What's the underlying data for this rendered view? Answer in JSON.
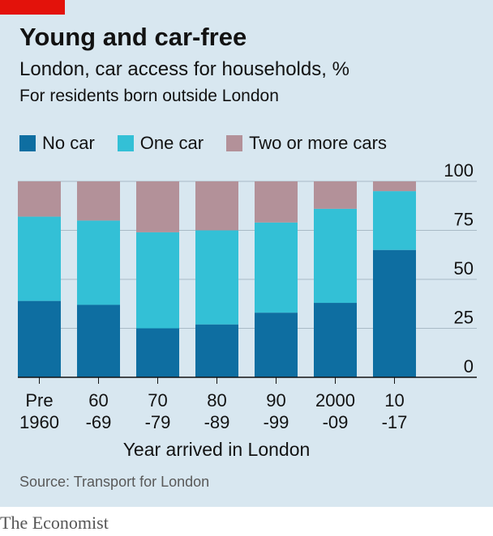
{
  "title": "Young and car-free",
  "subtitle": "London, car access for households, %",
  "subtitle2": "For residents born outside London",
  "source": "Source: Transport for London",
  "brand": "The Economist",
  "colors": {
    "no_car": "#0e6ea1",
    "one_car": "#33c0d6",
    "two_plus": "#b39199",
    "background": "#d8e7f0",
    "brand_red": "#e3120b"
  },
  "chart_data": {
    "type": "bar",
    "stacked": true,
    "xlabel": "Year arrived in London",
    "ylabel": "",
    "ylim": [
      0,
      100
    ],
    "yticks": [
      "100",
      "75",
      "50",
      "25",
      "0"
    ],
    "legend_position": "top-left",
    "categories": [
      [
        "Pre",
        "1960"
      ],
      [
        "60",
        "-69"
      ],
      [
        "70",
        "-79"
      ],
      [
        "80",
        "-89"
      ],
      [
        "90",
        "-99"
      ],
      [
        "2000",
        "-09"
      ],
      [
        "10",
        "-17"
      ]
    ],
    "series": [
      {
        "name": "No car",
        "values": [
          39,
          37,
          25,
          27,
          33,
          38,
          65
        ]
      },
      {
        "name": "One car",
        "values": [
          43,
          43,
          49,
          48,
          46,
          48,
          30
        ]
      },
      {
        "name": "Two or more cars",
        "values": [
          18,
          20,
          26,
          25,
          21,
          14,
          5
        ]
      }
    ]
  }
}
